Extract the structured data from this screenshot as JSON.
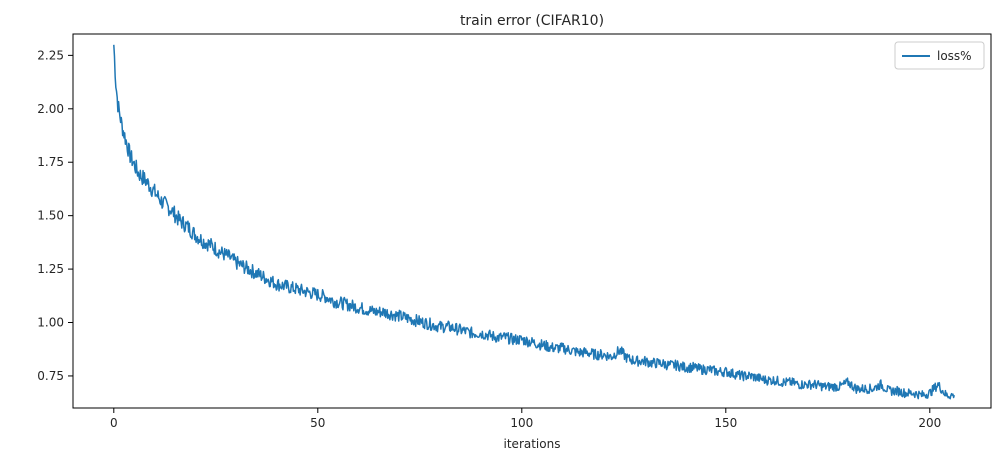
{
  "chart_data": {
    "type": "line",
    "title": "train error (CIFAR10)",
    "xlabel": "iterations",
    "ylabel": "",
    "xlim": [
      -10,
      215
    ],
    "ylim": [
      0.6,
      2.35
    ],
    "x_ticks": [
      0,
      50,
      100,
      150,
      200
    ],
    "y_ticks": [
      0.75,
      1.0,
      1.25,
      1.5,
      1.75,
      2.0,
      2.25
    ],
    "x_tick_labels": [
      "0",
      "50",
      "100",
      "150",
      "200"
    ],
    "y_tick_labels": [
      "0.75",
      "1.00",
      "1.25",
      "1.50",
      "1.75",
      "2.00",
      "2.25"
    ],
    "grid": false,
    "legend": {
      "position": "top-right",
      "entries": [
        "loss%"
      ]
    },
    "series": [
      {
        "name": "loss%",
        "color": "#1f77b4",
        "x": [
          0,
          0.5,
          1,
          2,
          3,
          4,
          5,
          6,
          8,
          10,
          12,
          14,
          16,
          18,
          20,
          22,
          24,
          26,
          28,
          30,
          32,
          34,
          36,
          38,
          40,
          42,
          44,
          46,
          48,
          50,
          52,
          54,
          56,
          58,
          60,
          62,
          64,
          66,
          68,
          70,
          72,
          74,
          76,
          78,
          80,
          82,
          84,
          86,
          88,
          90,
          92,
          94,
          96,
          98,
          100,
          102,
          104,
          106,
          108,
          110,
          112,
          114,
          116,
          118,
          120,
          122,
          124,
          126,
          128,
          130,
          132,
          134,
          136,
          138,
          140,
          142,
          144,
          146,
          148,
          150,
          152,
          154,
          156,
          158,
          160,
          162,
          164,
          166,
          168,
          170,
          172,
          174,
          176,
          178,
          180,
          182,
          184,
          186,
          188,
          190,
          192,
          194,
          196,
          198,
          200,
          202,
          204,
          206
        ],
        "values": [
          2.3,
          2.12,
          2.02,
          1.92,
          1.85,
          1.78,
          1.74,
          1.7,
          1.66,
          1.61,
          1.56,
          1.53,
          1.48,
          1.45,
          1.41,
          1.38,
          1.36,
          1.33,
          1.31,
          1.28,
          1.26,
          1.24,
          1.22,
          1.2,
          1.18,
          1.17,
          1.16,
          1.15,
          1.14,
          1.13,
          1.12,
          1.1,
          1.09,
          1.08,
          1.07,
          1.06,
          1.05,
          1.05,
          1.04,
          1.03,
          1.02,
          1.01,
          1.0,
          0.99,
          0.98,
          0.98,
          0.97,
          0.96,
          0.95,
          0.95,
          0.94,
          0.93,
          0.93,
          0.92,
          0.92,
          0.91,
          0.9,
          0.89,
          0.88,
          0.88,
          0.87,
          0.86,
          0.86,
          0.85,
          0.85,
          0.84,
          0.87,
          0.83,
          0.82,
          0.82,
          0.81,
          0.81,
          0.8,
          0.8,
          0.79,
          0.79,
          0.78,
          0.78,
          0.77,
          0.77,
          0.76,
          0.75,
          0.75,
          0.74,
          0.73,
          0.73,
          0.72,
          0.72,
          0.71,
          0.71,
          0.71,
          0.7,
          0.7,
          0.7,
          0.72,
          0.69,
          0.69,
          0.69,
          0.71,
          0.68,
          0.68,
          0.67,
          0.67,
          0.66,
          0.67,
          0.71,
          0.66,
          0.66
        ]
      }
    ]
  }
}
